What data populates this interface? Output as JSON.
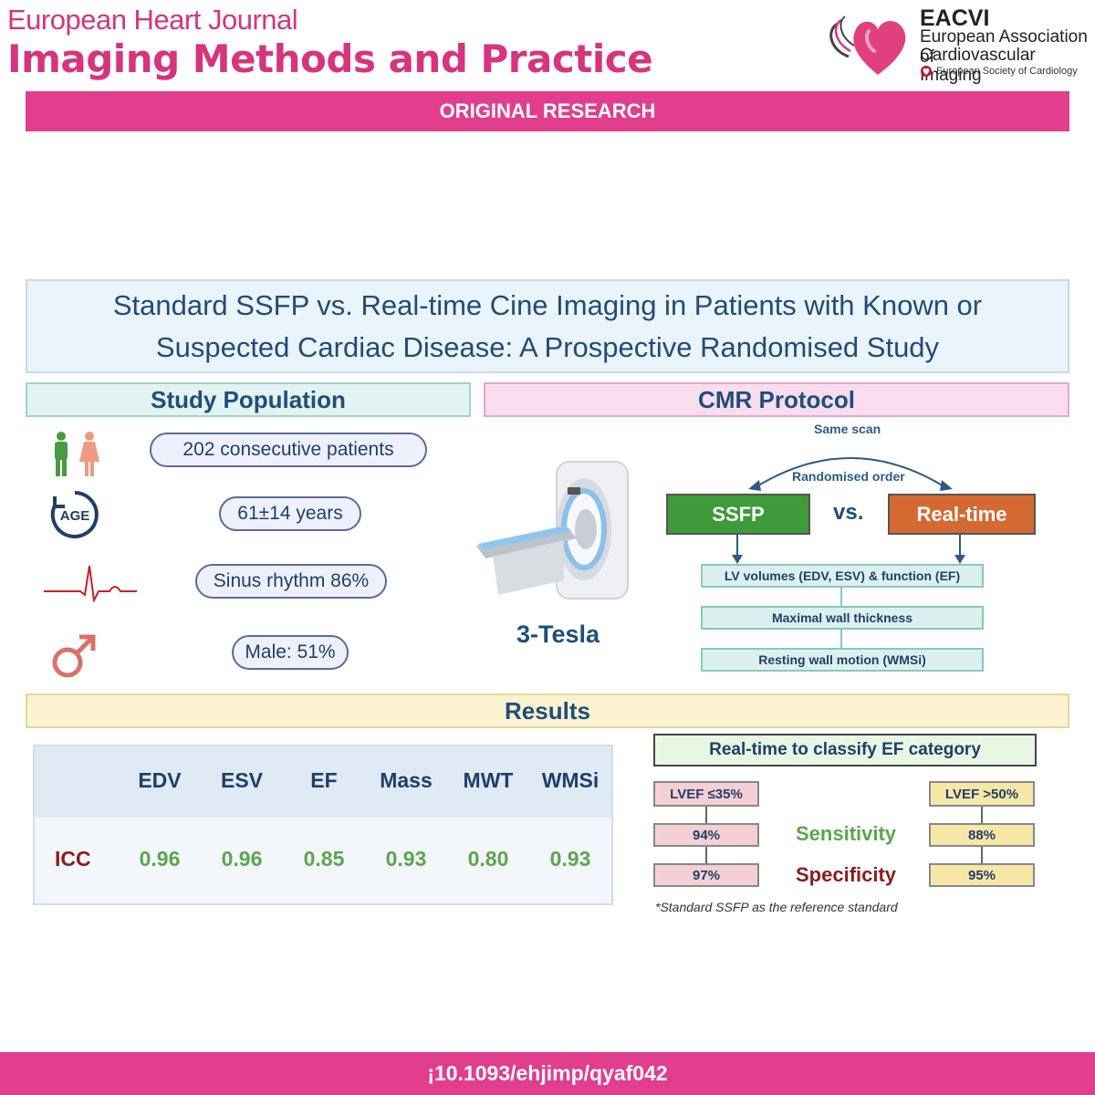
{
  "header": {
    "journal_line1": "European Heart Journal",
    "journal_line2": "Imaging Methods and Practice",
    "org_abbrev": "EACVI",
    "org_line1": "European Association of",
    "org_line2": "Cardiovascular Imaging",
    "society": "European Society of Cardiology",
    "section_banner": "ORIGINAL RESEARCH",
    "brand_color": "#e13e8d"
  },
  "title": {
    "line1": "Standard SSFP vs. Real-time Cine Imaging in Patients with Known or",
    "line2": "Suspected Cardiac Disease: A Prospective Randomised Study"
  },
  "study_population": {
    "heading": "Study Population",
    "items": [
      {
        "icon": "people-icon",
        "text": "202 consecutive patients"
      },
      {
        "icon": "age-icon",
        "icon_text": "AGE",
        "text": "61±14 years"
      },
      {
        "icon": "ecg-icon",
        "text": "Sinus rhythm 86%"
      },
      {
        "icon": "male-symbol-icon",
        "text": "Male: 51%"
      }
    ]
  },
  "cmr_protocol": {
    "heading": "CMR Protocol",
    "same_scan": "Same scan",
    "randomised": "Randomised order",
    "method_a": "SSFP",
    "versus": "vs.",
    "method_b": "Real-time",
    "method_a_color": "#3f9a3a",
    "method_b_color": "#d46a31",
    "scanner_label": "3-Tesla",
    "outcomes": [
      "LV volumes (EDV, ESV) & function (EF)",
      "Maximal wall thickness",
      "Resting wall motion (WMSi)"
    ]
  },
  "results": {
    "heading": "Results",
    "table": {
      "columns": [
        "EDV",
        "ESV",
        "EF",
        "Mass",
        "MWT",
        "WMSi"
      ],
      "row_label": "ICC",
      "values": [
        "0.96",
        "0.96",
        "0.85",
        "0.93",
        "0.80",
        "0.93"
      ]
    },
    "ef_classification": {
      "title": "Real-time to classify EF category",
      "left_header": "LVEF ≤35%",
      "right_header": "LVEF >50%",
      "sensitivity_label": "Sensitivity",
      "specificity_label": "Specificity",
      "left_sensitivity": "94%",
      "left_specificity": "97%",
      "right_sensitivity": "88%",
      "right_specificity": "95%",
      "footnote": "*Standard SSFP as the reference standard"
    }
  },
  "footer": {
    "doi": "¡10.1093/ehjimp/qyaf042"
  }
}
